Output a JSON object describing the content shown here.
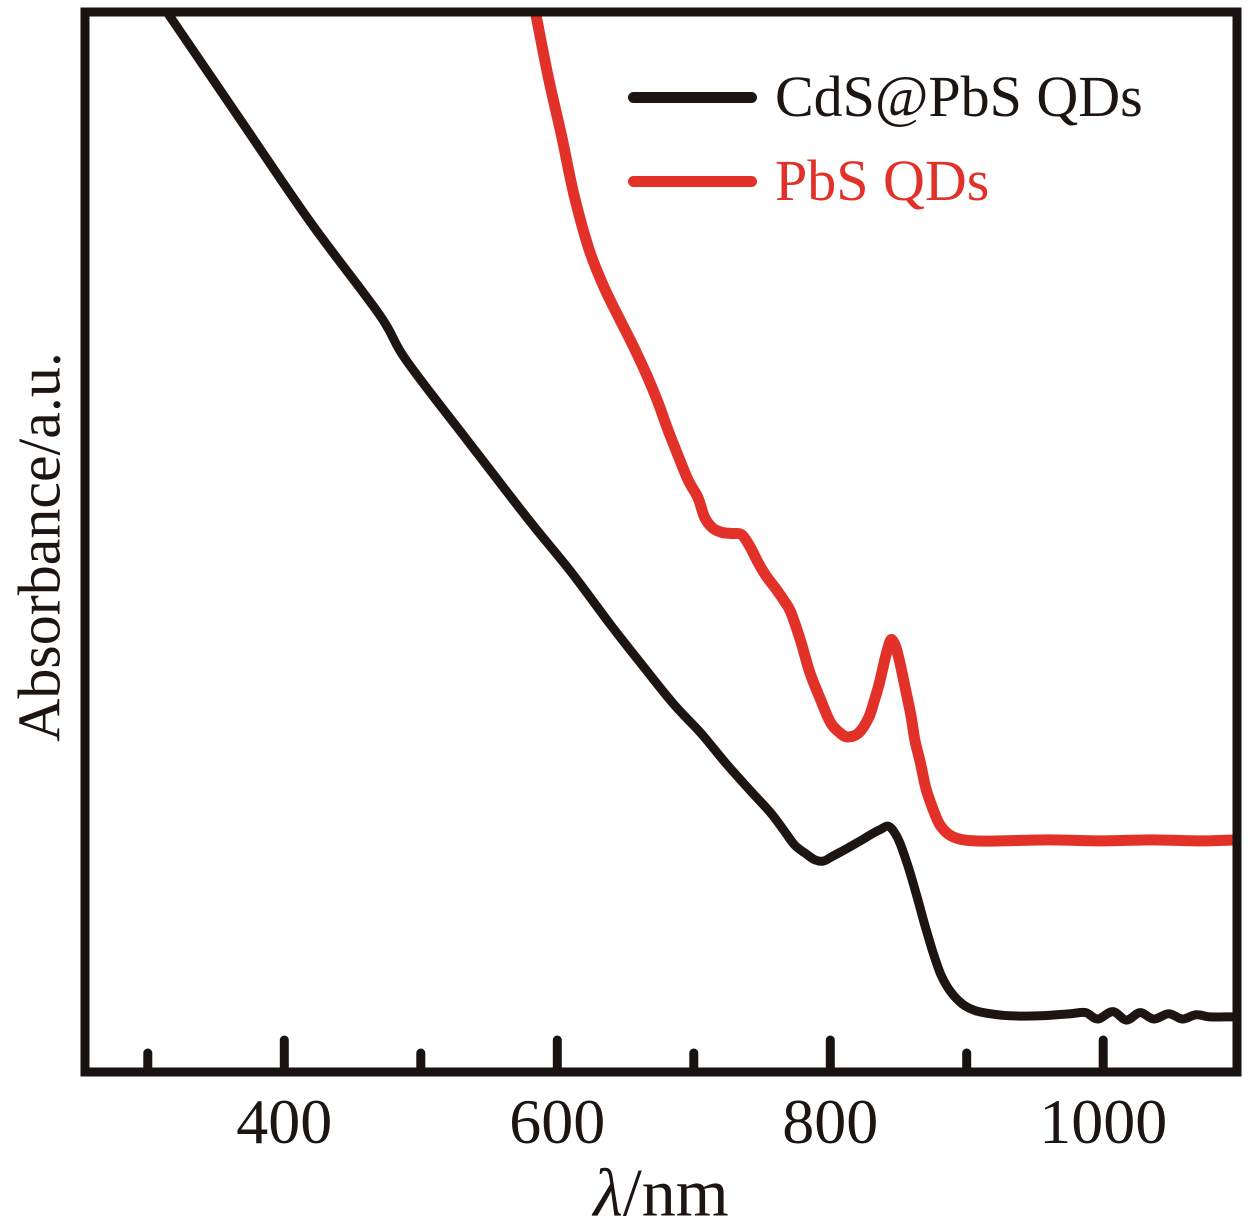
{
  "figure": {
    "background": "#ffffff",
    "ink_color": "#1c1512"
  },
  "legend": {
    "items": [
      {
        "label": "CdS@PbS QDs",
        "color": "#1c1512"
      },
      {
        "label": "PbS QDs",
        "color": "#e23128"
      }
    ]
  },
  "chart_data": {
    "type": "line",
    "title": "",
    "xlabel": "λ/nm",
    "xlabel_symbol": "λ",
    "xlabel_rest": "/nm",
    "ylabel": "Absorbance/a.u.",
    "xlim": [
      254,
      1098
    ],
    "ylim": [
      0,
      1
    ],
    "x_ticks_major": [
      400,
      600,
      800,
      1000
    ],
    "x_ticks_minor": [
      300,
      500,
      700,
      900
    ],
    "x_tick_labels": [
      "400",
      "600",
      "800",
      "1000"
    ],
    "y_ticks": [],
    "grid": false,
    "legend_position": "top-right-inside",
    "axis_color": "#181210",
    "series": [
      {
        "name": "CdS@PbS QDs",
        "color": "#1c1512",
        "width": 9,
        "points": [
          [
            314,
            1.0
          ],
          [
            368,
            0.898
          ],
          [
            419,
            0.802
          ],
          [
            470,
            0.714
          ],
          [
            489,
            0.672
          ],
          [
            534,
            0.596
          ],
          [
            579,
            0.521
          ],
          [
            610,
            0.472
          ],
          [
            639,
            0.422
          ],
          [
            664,
            0.381
          ],
          [
            686,
            0.346
          ],
          [
            705,
            0.32
          ],
          [
            723,
            0.292
          ],
          [
            741,
            0.266
          ],
          [
            756,
            0.245
          ],
          [
            766,
            0.228
          ],
          [
            774,
            0.214
          ],
          [
            782,
            0.206
          ],
          [
            789,
            0.2
          ],
          [
            795,
            0.199
          ],
          [
            801,
            0.203
          ],
          [
            811,
            0.21
          ],
          [
            822,
            0.218
          ],
          [
            831,
            0.225
          ],
          [
            837,
            0.229
          ],
          [
            842,
            0.232
          ],
          [
            846,
            0.228
          ],
          [
            851,
            0.216
          ],
          [
            857,
            0.194
          ],
          [
            863,
            0.168
          ],
          [
            869,
            0.14
          ],
          [
            875,
            0.114
          ],
          [
            881,
            0.092
          ],
          [
            888,
            0.076
          ],
          [
            897,
            0.064
          ],
          [
            906,
            0.058
          ],
          [
            917,
            0.055
          ],
          [
            932,
            0.053
          ],
          [
            954,
            0.053
          ],
          [
            976,
            0.055
          ],
          [
            987,
            0.056
          ],
          [
            996,
            0.05
          ],
          [
            1007,
            0.057
          ],
          [
            1017,
            0.049
          ],
          [
            1027,
            0.056
          ],
          [
            1037,
            0.05
          ],
          [
            1048,
            0.055
          ],
          [
            1058,
            0.05
          ],
          [
            1068,
            0.054
          ],
          [
            1078,
            0.052
          ],
          [
            1089,
            0.052
          ],
          [
            1097,
            0.052
          ]
        ]
      },
      {
        "name": "PbS QDs",
        "color": "#e23128",
        "width": 11,
        "points": [
          [
            584,
            1.0
          ],
          [
            593,
            0.941
          ],
          [
            603,
            0.884
          ],
          [
            612,
            0.829
          ],
          [
            623,
            0.777
          ],
          [
            634,
            0.741
          ],
          [
            645,
            0.712
          ],
          [
            656,
            0.684
          ],
          [
            666,
            0.656
          ],
          [
            674,
            0.631
          ],
          [
            681,
            0.606
          ],
          [
            689,
            0.58
          ],
          [
            696,
            0.558
          ],
          [
            703,
            0.542
          ],
          [
            708,
            0.523
          ],
          [
            714,
            0.513
          ],
          [
            721,
            0.509
          ],
          [
            728,
            0.508
          ],
          [
            735,
            0.507
          ],
          [
            741,
            0.496
          ],
          [
            747,
            0.481
          ],
          [
            753,
            0.468
          ],
          [
            760,
            0.456
          ],
          [
            766,
            0.445
          ],
          [
            771,
            0.434
          ],
          [
            778,
            0.408
          ],
          [
            785,
            0.377
          ],
          [
            793,
            0.351
          ],
          [
            800,
            0.33
          ],
          [
            807,
            0.32
          ],
          [
            813,
            0.316
          ],
          [
            821,
            0.32
          ],
          [
            828,
            0.334
          ],
          [
            832,
            0.349
          ],
          [
            836,
            0.367
          ],
          [
            840,
            0.389
          ],
          [
            843,
            0.403
          ],
          [
            845,
            0.408
          ],
          [
            848,
            0.401
          ],
          [
            851,
            0.386
          ],
          [
            855,
            0.362
          ],
          [
            859,
            0.337
          ],
          [
            862,
            0.313
          ],
          [
            866,
            0.292
          ],
          [
            870,
            0.268
          ],
          [
            875,
            0.249
          ],
          [
            880,
            0.234
          ],
          [
            886,
            0.225
          ],
          [
            894,
            0.22
          ],
          [
            906,
            0.218
          ],
          [
            925,
            0.218
          ],
          [
            961,
            0.219
          ],
          [
            998,
            0.218
          ],
          [
            1034,
            0.219
          ],
          [
            1071,
            0.218
          ],
          [
            1097,
            0.219
          ]
        ]
      }
    ]
  }
}
